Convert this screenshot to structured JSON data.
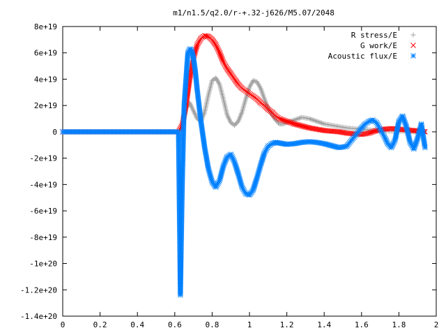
{
  "chart_data": {
    "type": "scatter",
    "title": "m1/n1.5/q2.0/r-+.32-j626/M5.07/2048",
    "xlabel": "",
    "ylabel": "",
    "xlim": [
      0,
      2
    ],
    "ylim": [
      -1.4e+20,
      8e+19
    ],
    "x_ticks": [
      0,
      0.2,
      0.4,
      0.6,
      0.8,
      1,
      1.2,
      1.4,
      1.6,
      1.8,
      2
    ],
    "x_tick_labels": [
      "0",
      "0.2",
      "0.4",
      "0.6",
      "0.8",
      "1",
      "1.2",
      "1.4",
      "1.6",
      "1.8",
      "2"
    ],
    "y_ticks": [
      8e+19,
      6e+19,
      4e+19,
      2e+19,
      0,
      -2e+19,
      -4e+19,
      -6e+19,
      -8e+19,
      -1e+20,
      -1.2e+20,
      -1.4e+20
    ],
    "y_tick_labels": [
      "8e+19",
      "6e+19",
      "4e+19",
      "2e+19",
      "0",
      "-2e+19",
      "-4e+19",
      "-6e+19",
      "-8e+19",
      "-1e+20",
      "-1.2e+20",
      "-1.4e+20"
    ],
    "grid": false,
    "legend_position": "top-right",
    "series": [
      {
        "name": "R stress/E",
        "color": "#a0a0a0",
        "marker": "plus",
        "x": [
          0,
          0.62,
          0.64,
          0.66,
          0.68,
          0.7,
          0.72,
          0.74,
          0.76,
          0.78,
          0.8,
          0.82,
          0.84,
          0.86,
          0.88,
          0.9,
          0.92,
          0.94,
          0.96,
          0.98,
          1.0,
          1.02,
          1.04,
          1.06,
          1.08,
          1.1,
          1.12,
          1.14,
          1.16,
          1.18,
          1.2,
          1.24,
          1.28,
          1.32,
          1.36,
          1.4,
          1.44,
          1.48,
          1.52,
          1.56,
          1.6,
          1.64,
          1.68,
          1.72,
          1.76,
          1.8,
          1.84,
          1.88,
          1.92,
          1.94
        ],
        "y": [
          0,
          0,
          3e+18,
          1.8e+19,
          2.2e+19,
          1.6e+19,
          1e+19,
          8e+18,
          1.5e+19,
          2.8e+19,
          3.9e+19,
          4.1e+19,
          3.6e+19,
          2.5e+19,
          1.3e+19,
          7e+18,
          5e+18,
          8e+18,
          1.5e+19,
          2.5e+19,
          3.4e+19,
          3.9e+19,
          3.8e+19,
          3.3e+19,
          2.5e+19,
          1.8e+19,
          1.3e+19,
          9e+18,
          6e+18,
          6e+18,
          7e+18,
          9e+18,
          1.1e+19,
          1e+19,
          8e+18,
          6e+18,
          5e+18,
          4e+18,
          3e+18,
          2.5e+18,
          2e+18,
          1.5e+18,
          1e+18,
          1e+18,
          5e+17,
          5e+17,
          5e+17,
          0,
          0,
          0
        ]
      },
      {
        "name": "G work/E",
        "color": "#ff0000",
        "marker": "cross",
        "x": [
          0,
          0.62,
          0.64,
          0.66,
          0.68,
          0.7,
          0.72,
          0.74,
          0.76,
          0.78,
          0.8,
          0.82,
          0.84,
          0.86,
          0.88,
          0.9,
          0.92,
          0.94,
          0.96,
          0.98,
          1.0,
          1.02,
          1.04,
          1.06,
          1.08,
          1.1,
          1.12,
          1.14,
          1.16,
          1.18,
          1.2,
          1.24,
          1.28,
          1.32,
          1.36,
          1.4,
          1.44,
          1.48,
          1.52,
          1.56,
          1.6,
          1.64,
          1.68,
          1.72,
          1.76,
          1.8,
          1.84,
          1.88,
          1.92,
          1.94
        ],
        "y": [
          0,
          0,
          5e+18,
          2e+19,
          4e+19,
          5.6e+19,
          6.6e+19,
          7.1e+19,
          7.3e+19,
          7.25e+19,
          7e+19,
          6.6e+19,
          6e+19,
          5.3e+19,
          4.8e+19,
          4.4e+19,
          4e+19,
          3.6e+19,
          3.3e+19,
          3.1e+19,
          2.9e+19,
          2.7e+19,
          2.5e+19,
          2.2e+19,
          2e+19,
          1.7e+19,
          1.5e+19,
          1.2e+19,
          1e+19,
          9e+18,
          8e+18,
          6e+18,
          4.5e+18,
          3e+18,
          2e+18,
          1e+18,
          5e+17,
          0,
          -1e+18,
          -1.5e+18,
          -2e+18,
          -1e+18,
          1e+18,
          2e+18,
          2.5e+18,
          2e+18,
          1.5e+18,
          1e+18,
          5e+17,
          0
        ]
      },
      {
        "name": "Acoustic flux/E",
        "color": "#0080ff",
        "marker": "star",
        "x": [
          0,
          0.62,
          0.63,
          0.64,
          0.65,
          0.66,
          0.67,
          0.68,
          0.69,
          0.7,
          0.71,
          0.72,
          0.74,
          0.76,
          0.78,
          0.8,
          0.82,
          0.84,
          0.86,
          0.88,
          0.9,
          0.92,
          0.94,
          0.96,
          0.98,
          1.0,
          1.02,
          1.04,
          1.06,
          1.08,
          1.1,
          1.12,
          1.14,
          1.16,
          1.18,
          1.2,
          1.24,
          1.28,
          1.32,
          1.36,
          1.4,
          1.44,
          1.48,
          1.52,
          1.56,
          1.6,
          1.62,
          1.64,
          1.66,
          1.68,
          1.7,
          1.72,
          1.74,
          1.76,
          1.78,
          1.8,
          1.82,
          1.84,
          1.86,
          1.88,
          1.9,
          1.92,
          1.94
        ],
        "y": [
          0,
          0,
          -1.24e+20,
          -4e+19,
          2e+19,
          4e+19,
          6e+19,
          6.3e+19,
          6.2e+19,
          5.6e+19,
          4.6e+19,
          3.2e+19,
          8e+18,
          -1.2e+19,
          -2.8e+19,
          -3.8e+19,
          -4.2e+19,
          -3.7e+19,
          -2.6e+19,
          -1.9e+19,
          -1.7e+19,
          -2.3e+19,
          -3.2e+19,
          -4.2e+19,
          -4.7e+19,
          -4.8e+19,
          -4.4e+19,
          -3.5e+19,
          -2.5e+19,
          -1.6e+19,
          -1.1e+19,
          -9e+18,
          -8e+18,
          -8.5e+18,
          -9e+18,
          -9.5e+18,
          -9e+18,
          -8e+18,
          -7.5e+18,
          -8e+18,
          -9e+18,
          -1.05e+19,
          -1.2e+19,
          -1.1e+19,
          -4e+18,
          3e+18,
          6e+18,
          8e+18,
          9e+18,
          7e+18,
          2e+18,
          -3e+18,
          -9e+18,
          -1.2e+19,
          -6e+18,
          8e+18,
          1.2e+19,
          4e+18,
          -8e+18,
          -1.3e+19,
          -5e+18,
          6e+18,
          -1.2e+19
        ]
      }
    ]
  }
}
